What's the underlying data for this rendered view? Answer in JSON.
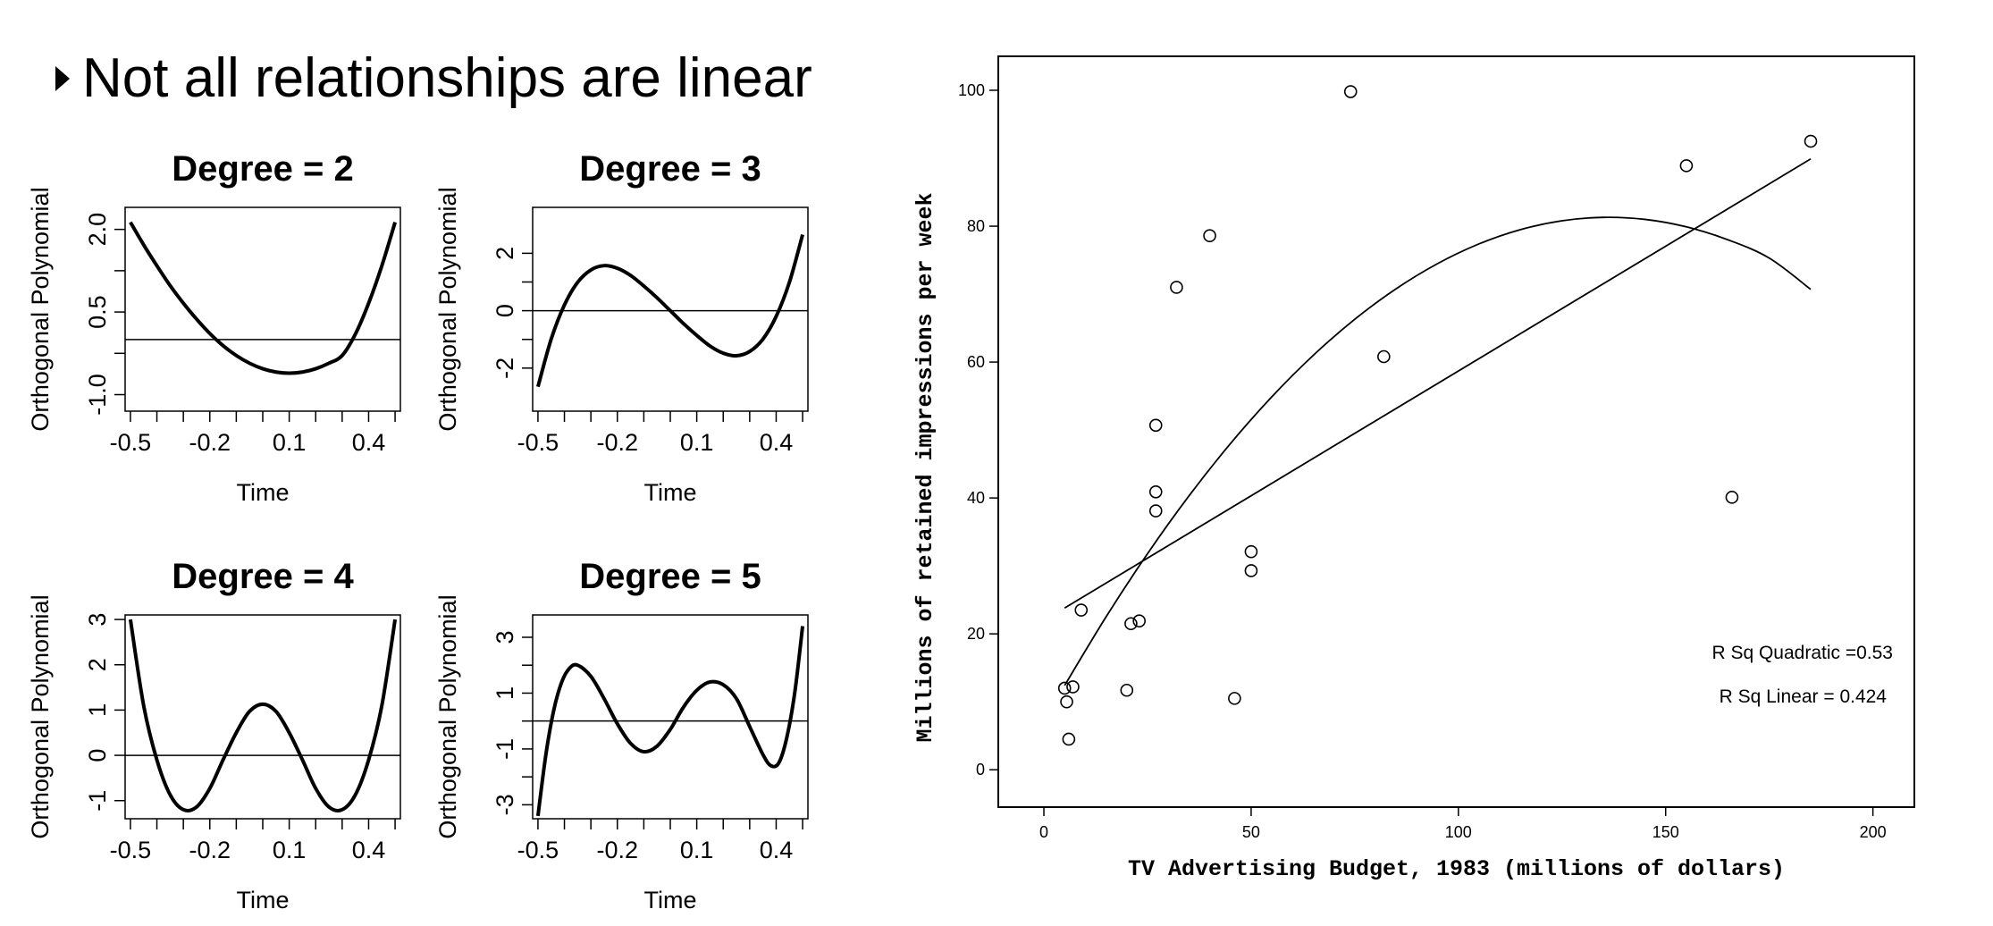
{
  "heading": "Not all relationships are linear",
  "chart_data": [
    {
      "type": "line",
      "title": "Degree = 2",
      "xlabel": "Time",
      "ylabel": "Orthogonal Polynomial",
      "xticks": [
        "-0.5",
        "-0.2",
        "0.1",
        "0.4"
      ],
      "yticks": [
        "-1.0",
        "0.5",
        "2.0"
      ],
      "xlim": [
        -0.52,
        0.52
      ],
      "ylim": [
        -1.3,
        2.4
      ],
      "reference_line": 0,
      "curve": {
        "x": [
          -0.5,
          -0.45,
          -0.4,
          -0.35,
          -0.3,
          -0.25,
          -0.2,
          -0.15,
          -0.1,
          -0.05,
          0,
          0.05,
          0.1,
          0.15,
          0.2,
          0.25,
          0.3,
          0.35,
          0.4,
          0.45,
          0.5
        ],
        "y": [
          2.13,
          1.72,
          1.34,
          0.98,
          0.66,
          0.37,
          0.11,
          -0.11,
          -0.29,
          -0.43,
          -0.53,
          -0.59,
          -0.61,
          -0.59,
          -0.53,
          -0.43,
          -0.29,
          0.1,
          0.66,
          1.34,
          2.13
        ]
      }
    },
    {
      "type": "line",
      "title": "Degree = 3",
      "xlabel": "Time",
      "ylabel": "Orthogonal Polynomial",
      "xticks": [
        "-0.5",
        "-0.2",
        "0.1",
        "0.4"
      ],
      "yticks": [
        "-2",
        "0",
        "2"
      ],
      "xlim": [
        -0.52,
        0.52
      ],
      "ylim": [
        -3.5,
        3.6
      ],
      "reference_line": 0,
      "curve": {
        "x": [
          -0.5,
          -0.45,
          -0.4,
          -0.35,
          -0.3,
          -0.25,
          -0.2,
          -0.15,
          -0.1,
          -0.05,
          0,
          0.05,
          0.1,
          0.15,
          0.2,
          0.25,
          0.3,
          0.35,
          0.4,
          0.45,
          0.5
        ],
        "y": [
          -2.65,
          -0.99,
          0.2,
          0.99,
          1.42,
          1.57,
          1.48,
          1.23,
          0.86,
          0.45,
          0,
          -0.45,
          -0.86,
          -1.23,
          -1.48,
          -1.57,
          -1.42,
          -0.99,
          -0.2,
          0.99,
          2.65
        ]
      }
    },
    {
      "type": "line",
      "title": "Degree = 4",
      "xlabel": "Time",
      "ylabel": "Orthogonal Polynomial",
      "xticks": [
        "-0.5",
        "-0.2",
        "0.1",
        "0.4"
      ],
      "yticks": [
        "-1",
        "0",
        "1",
        "2",
        "3"
      ],
      "xlim": [
        -0.52,
        0.52
      ],
      "ylim": [
        -1.4,
        3.1
      ],
      "reference_line": 0,
      "curve": {
        "x": [
          -0.5,
          -0.45,
          -0.4,
          -0.35,
          -0.3,
          -0.25,
          -0.2,
          -0.15,
          -0.1,
          -0.05,
          0,
          0.05,
          0.1,
          0.15,
          0.2,
          0.25,
          0.3,
          0.35,
          0.4,
          0.45,
          0.5
        ],
        "y": [
          3.0,
          1.1,
          -0.1,
          -0.87,
          -1.2,
          -1.14,
          -0.73,
          -0.1,
          0.5,
          0.97,
          1.13,
          0.97,
          0.5,
          -0.1,
          -0.73,
          -1.14,
          -1.2,
          -0.87,
          -0.1,
          1.1,
          3.0
        ]
      }
    },
    {
      "type": "line",
      "title": "Degree = 5",
      "xlabel": "Time",
      "ylabel": "Orthogonal Polynomial",
      "xticks": [
        "-0.5",
        "-0.2",
        "0.1",
        "0.4"
      ],
      "yticks": [
        "-3",
        "-1",
        "1",
        "3"
      ],
      "xlim": [
        -0.52,
        0.52
      ],
      "ylim": [
        -3.5,
        3.8
      ],
      "reference_line": 0,
      "curve": {
        "x": [
          -0.5,
          -0.47,
          -0.44,
          -0.41,
          -0.38,
          -0.35,
          -0.3,
          -0.25,
          -0.2,
          -0.15,
          -0.1,
          -0.05,
          0,
          0.05,
          0.1,
          0.15,
          0.2,
          0.25,
          0.3,
          0.35,
          0.38,
          0.41,
          0.44,
          0.47,
          0.5
        ],
        "y": [
          -3.4,
          -1.2,
          0.4,
          1.4,
          1.9,
          2.0,
          1.6,
          0.8,
          -0.1,
          -0.8,
          -1.1,
          -0.9,
          -0.3,
          0.5,
          1.1,
          1.4,
          1.3,
          0.8,
          -0.2,
          -1.2,
          -1.6,
          -1.5,
          -0.6,
          1.0,
          3.4
        ]
      }
    },
    {
      "type": "scatter",
      "xlabel": "TV Advertising Budget, 1983 (millions of dollars)",
      "ylabel": "Millions of retained impressions per week",
      "xticks": [
        "0",
        "50",
        "100",
        "150",
        "200"
      ],
      "yticks": [
        "0",
        "20",
        "40",
        "60",
        "80",
        "100"
      ],
      "xlim": [
        -11,
        210
      ],
      "ylim": [
        -5.5,
        105
      ],
      "points": [
        [
          5,
          12
        ],
        [
          5.5,
          10
        ],
        [
          6,
          4.5
        ],
        [
          7,
          12.2
        ],
        [
          9,
          23.5
        ],
        [
          20,
          11.7
        ],
        [
          21,
          21.5
        ],
        [
          23,
          21.9
        ],
        [
          27,
          50.7
        ],
        [
          27,
          40.9
        ],
        [
          27,
          38.1
        ],
        [
          32,
          71
        ],
        [
          40,
          78.6
        ],
        [
          46,
          10.5
        ],
        [
          50,
          29.3
        ],
        [
          50,
          32.1
        ],
        [
          74,
          99.8
        ],
        [
          82,
          60.8
        ],
        [
          155,
          88.9
        ],
        [
          166,
          40.1
        ],
        [
          185,
          92.5
        ]
      ],
      "linear_fit": {
        "x": [
          5,
          185
        ],
        "y": [
          23.8,
          89.9
        ]
      },
      "quadratic_fit": {
        "x": [
          5,
          15,
          25,
          35,
          45,
          55,
          65,
          75,
          85,
          95,
          105,
          115,
          125,
          135,
          145,
          155,
          165,
          175,
          185
        ],
        "y": [
          12.4,
          22.5,
          31.8,
          40.3,
          48,
          54.9,
          61,
          66.3,
          70.8,
          74.5,
          77.4,
          79.5,
          80.8,
          81.3,
          81,
          79.9,
          78,
          75.3,
          70.7
        ]
      },
      "annotations": [
        "R Sq Quadratic =0.53",
        "R Sq Linear = 0.424"
      ]
    }
  ]
}
